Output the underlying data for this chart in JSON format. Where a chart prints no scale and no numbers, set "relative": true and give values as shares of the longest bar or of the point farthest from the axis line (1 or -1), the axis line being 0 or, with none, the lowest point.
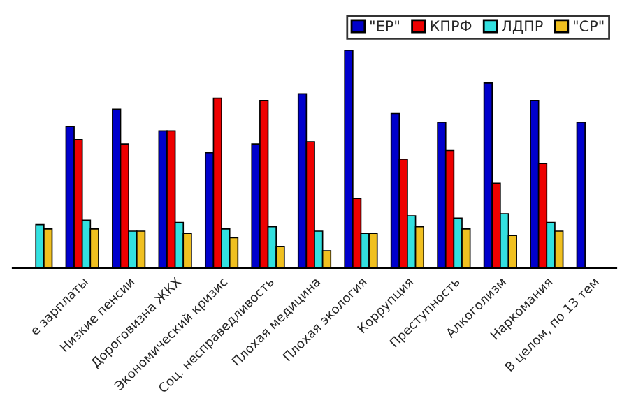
{
  "chart_data": {
    "type": "bar",
    "relative": true,
    "legend": "top right",
    "categories": [
      null,
      "е зарплаты",
      "Низкие пенсии",
      "Дороговизна ЖКХ",
      "Экономический кризис",
      "Соц. несправедливость",
      "Плохая медицина",
      "Плохая экология",
      "Коррупция",
      "Преступность",
      "Алкоголизм",
      "Наркомания",
      "В целом, по 13 тем"
    ],
    "series": [
      {
        "name": "\"ЕР\"",
        "color": "#0000cc",
        "values": [
          null,
          0.65,
          0.73,
          0.63,
          0.53,
          0.57,
          0.8,
          1,
          0.71,
          0.67,
          0.85,
          0.77,
          0.67
        ]
      },
      {
        "name": "КПРФ",
        "color": "#ee0000",
        "values": [
          null,
          0.59,
          0.57,
          0.63,
          0.78,
          0.77,
          0.58,
          0.32,
          0.5,
          0.54,
          0.39,
          0.48,
          null
        ]
      },
      {
        "name": "ЛДПР",
        "color": "#33e0e0",
        "values": [
          0.2,
          0.22,
          0.17,
          0.21,
          0.18,
          0.19,
          0.17,
          0.16,
          0.24,
          0.23,
          0.25,
          0.21,
          null
        ]
      },
      {
        "name": "\"СР\"",
        "color": "#f0c020",
        "values": [
          0.18,
          0.18,
          0.17,
          0.16,
          0.14,
          0.1,
          0.08,
          0.16,
          0.19,
          0.18,
          0.15,
          0.17,
          null
        ]
      }
    ]
  }
}
